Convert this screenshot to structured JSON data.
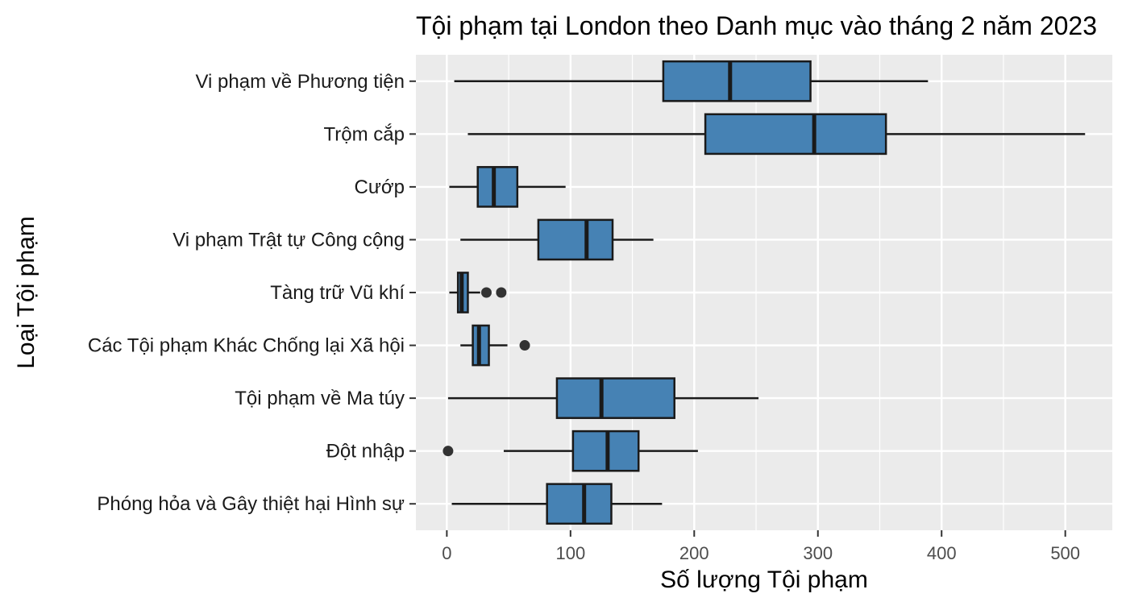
{
  "chart_data": {
    "type": "boxplot",
    "orientation": "horizontal",
    "title": "Tội phạm tại London theo Danh mục vào tháng 2 năm 2023",
    "xlabel": "Số lượng Tội phạm",
    "ylabel": "Loại Tội phạm",
    "xlim": [
      -25,
      538
    ],
    "x_ticks": [
      0,
      100,
      200,
      300,
      400,
      500
    ],
    "x_tick_labels": [
      "0",
      "100",
      "200",
      "300",
      "400",
      "500"
    ],
    "grid": true,
    "colors": {
      "panel": "#ebebeb",
      "grid_major": "#ffffff",
      "box_fill": "#4682b4",
      "box_stroke": "#1a1a1a",
      "outlier": "#333333"
    },
    "categories": [
      {
        "label": "Vi phạm về Phương tiện",
        "whisker_low": 6,
        "q1": 175,
        "median": 229,
        "q3": 294,
        "whisker_high": 389,
        "outliers": []
      },
      {
        "label": "Trộm cắp",
        "whisker_low": 17,
        "q1": 209,
        "median": 297,
        "q3": 355,
        "whisker_high": 516,
        "outliers": []
      },
      {
        "label": "Cướp",
        "whisker_low": 2,
        "q1": 25,
        "median": 38,
        "q3": 57,
        "whisker_high": 96,
        "outliers": []
      },
      {
        "label": "Vi phạm Trật tự Công cộng",
        "whisker_low": 11,
        "q1": 74,
        "median": 113,
        "q3": 134,
        "whisker_high": 167,
        "outliers": []
      },
      {
        "label": "Tàng trữ Vũ khí",
        "whisker_low": 2,
        "q1": 9,
        "median": 12,
        "q3": 17,
        "whisker_high": 27,
        "outliers": [
          32,
          44
        ]
      },
      {
        "label": "Các Tội phạm Khác Chống lại Xã hội",
        "whisker_low": 11,
        "q1": 21,
        "median": 26,
        "q3": 34,
        "whisker_high": 49,
        "outliers": [
          63
        ]
      },
      {
        "label": "Tội phạm về Ma túy",
        "whisker_low": 1,
        "q1": 89,
        "median": 125,
        "q3": 184,
        "whisker_high": 252,
        "outliers": []
      },
      {
        "label": "Đột nhập",
        "whisker_low": 46,
        "q1": 102,
        "median": 130,
        "q3": 155,
        "whisker_high": 203,
        "outliers": [
          1
        ]
      },
      {
        "label": "Phóng hỏa và Gây thiệt hại Hình sự",
        "whisker_low": 4,
        "q1": 81,
        "median": 111,
        "q3": 133,
        "whisker_high": 174,
        "outliers": []
      }
    ]
  }
}
